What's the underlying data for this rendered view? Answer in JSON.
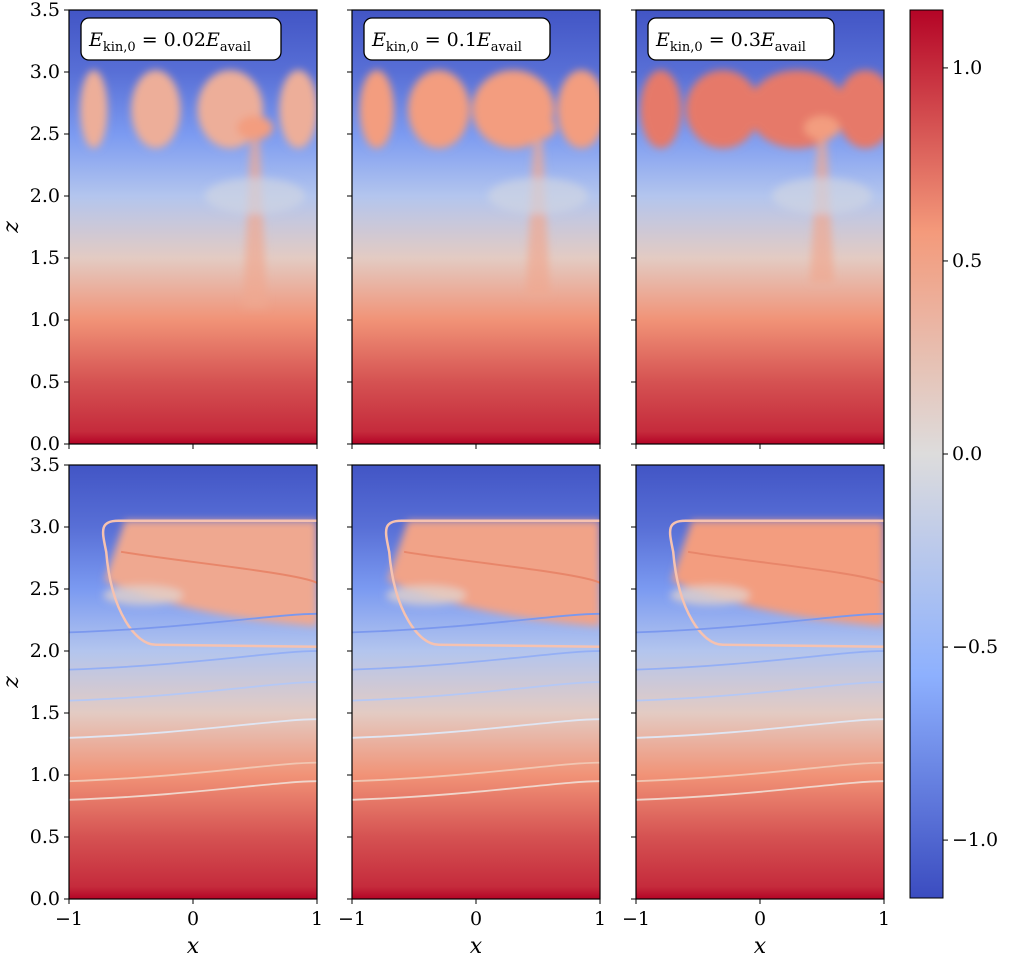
{
  "chart_data": {
    "type": "heatmap",
    "layout": "2 rows x 3 columns of colormap panels sharing one colorbar",
    "panel_titles": [
      {
        "var": "E",
        "sub": "kin,0",
        "eq": " = 0.02",
        "var2": "E",
        "sub2": "avail"
      },
      {
        "var": "E",
        "sub": "kin,0",
        "eq": " = 0.1",
        "var2": "E",
        "sub2": "avail"
      },
      {
        "var": "E",
        "sub": "kin,0",
        "eq": " = 0.3",
        "var2": "E",
        "sub2": "avail"
      }
    ],
    "xlabel": "x",
    "ylabel": "z",
    "xlim": [
      -1,
      1
    ],
    "ylim": [
      0.0,
      3.5
    ],
    "xticks": [
      -1,
      0,
      1
    ],
    "xtick_labels": [
      "−1",
      "0",
      "1"
    ],
    "yticks": [
      0.0,
      0.5,
      1.0,
      1.5,
      2.0,
      2.5,
      3.0,
      3.5
    ],
    "ytick_labels": [
      "0.0",
      "0.5",
      "1.0",
      "1.5",
      "2.0",
      "2.5",
      "3.0",
      "3.5"
    ],
    "colorbar": {
      "colormap": "coolwarm",
      "range": [
        -1.15,
        1.15
      ],
      "ticks": [
        -1.0,
        -0.5,
        0.0,
        0.5,
        1.0
      ],
      "tick_labels": [
        "−1.0",
        "−0.5",
        "0.0",
        "0.5",
        "1.0"
      ],
      "low_color": "#3b4cc0",
      "mid_color": "#dddcdc",
      "high_color": "#b40426"
    },
    "background_profile": {
      "description": "horizontally uniform field decreasing with height",
      "z": [
        0.0,
        0.1,
        0.5,
        1.0,
        1.5,
        2.0,
        2.5,
        3.0,
        3.5
      ],
      "value": [
        1.15,
        1.0,
        0.85,
        0.6,
        0.15,
        -0.3,
        -0.7,
        -0.95,
        -1.1
      ]
    },
    "top_row_features": {
      "upper_layer_z": [
        2.35,
        3.05
      ],
      "upper_layer_value": [
        0.4,
        0.55,
        0.7
      ],
      "central_column_x": 0.5
    },
    "bottom_row_contours": {
      "upper_contour_z": [
        2.05,
        3.05
      ],
      "upper_contour_left_x": -0.7,
      "lower_contours_z": [
        0.8,
        0.95,
        1.3,
        1.6,
        1.85,
        2.15
      ]
    }
  }
}
